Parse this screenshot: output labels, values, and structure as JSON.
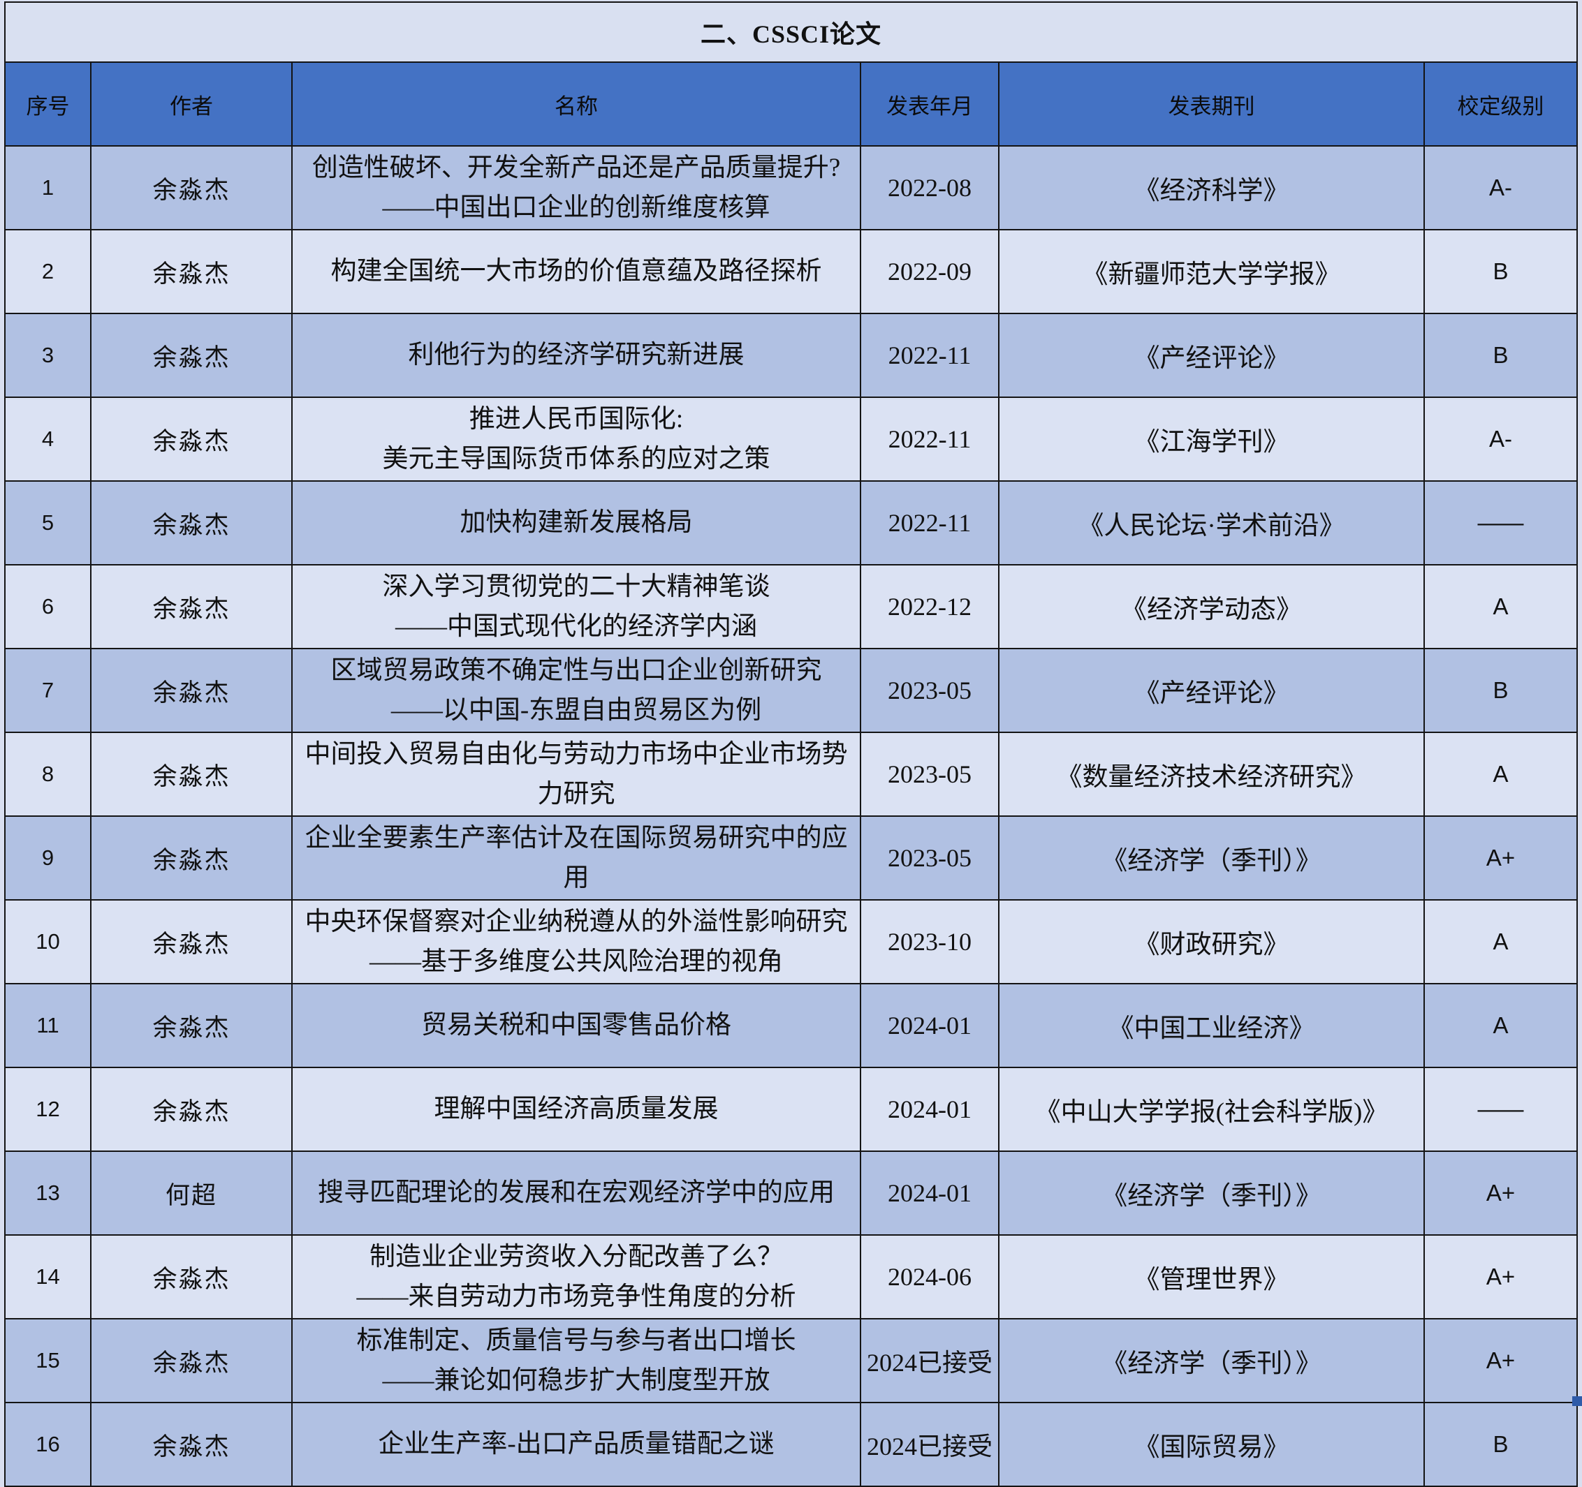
{
  "page": {
    "title": "二、CSSCI论文"
  },
  "colors": {
    "header_blue": "#4472c4",
    "row_dark": "#b1c1e3",
    "row_light": "#dbe2f3",
    "title_band": "#d9e0f1",
    "border": "#141414",
    "fill_handle": "#2e5ba9"
  },
  "table": {
    "headers": [
      "序号",
      "作者",
      "名称",
      "发表年月",
      "发表期刊",
      "校定级别"
    ],
    "rows": [
      {
        "seq": "1",
        "author": "余淼杰",
        "title_lines": [
          "创造性破坏、开发全新产品还是产品质量提升?",
          "——中国出口企业的创新维度核算"
        ],
        "date": "2022-08",
        "journal": "《经济科学》",
        "level": "A-",
        "shade": "dark"
      },
      {
        "seq": "2",
        "author": "余淼杰",
        "title_lines": [
          "构建全国统一大市场的价值意蕴及路径探析"
        ],
        "date": "2022-09",
        "journal": "《新疆师范大学学报》",
        "level": "B",
        "shade": "light"
      },
      {
        "seq": "3",
        "author": "余淼杰",
        "title_lines": [
          "利他行为的经济学研究新进展"
        ],
        "date": "2022-11",
        "journal": "《产经评论》",
        "level": "B",
        "shade": "dark"
      },
      {
        "seq": "4",
        "author": "余淼杰",
        "title_lines": [
          "推进人民币国际化:",
          "美元主导国际货币体系的应对之策"
        ],
        "date": "2022-11",
        "journal": "《江海学刊》",
        "level": "A-",
        "shade": "light"
      },
      {
        "seq": "5",
        "author": "余淼杰",
        "title_lines": [
          "加快构建新发展格局"
        ],
        "date": "2022-11",
        "journal": "《人民论坛·学术前沿》",
        "level": "——",
        "shade": "dark"
      },
      {
        "seq": "6",
        "author": "余淼杰",
        "title_lines": [
          "深入学习贯彻党的二十大精神笔谈",
          "——中国式现代化的经济学内涵"
        ],
        "date": "2022-12",
        "journal": "《经济学动态》",
        "level": "A",
        "shade": "light"
      },
      {
        "seq": "7",
        "author": "余淼杰",
        "title_lines": [
          "区域贸易政策不确定性与出口企业创新研究",
          "——以中国-东盟自由贸易区为例"
        ],
        "date": "2023-05",
        "journal": "《产经评论》",
        "level": "B",
        "shade": "dark"
      },
      {
        "seq": "8",
        "author": "余淼杰",
        "title_lines": [
          "中间投入贸易自由化与劳动力市场中企业市场势力研究"
        ],
        "date": "2023-05",
        "journal": "《数量经济技术经济研究》",
        "level": "A",
        "shade": "light"
      },
      {
        "seq": "9",
        "author": "余淼杰",
        "title_lines": [
          "企业全要素生产率估计及在国际贸易研究中的应用"
        ],
        "date": "2023-05",
        "journal": "《经济学（季刊）》",
        "level": "A+",
        "shade": "dark"
      },
      {
        "seq": "10",
        "author": "余淼杰",
        "title_lines": [
          "中央环保督察对企业纳税遵从的外溢性影响研究",
          "——基于多维度公共风险治理的视角"
        ],
        "date": "2023-10",
        "journal": "《财政研究》",
        "level": "A",
        "shade": "light"
      },
      {
        "seq": "11",
        "author": "余淼杰",
        "title_lines": [
          "贸易关税和中国零售品价格"
        ],
        "date": "2024-01",
        "journal": "《中国工业经济》",
        "level": "A",
        "shade": "dark"
      },
      {
        "seq": "12",
        "author": "余淼杰",
        "title_lines": [
          "理解中国经济高质量发展"
        ],
        "date": "2024-01",
        "journal": "《中山大学学报(社会科学版)》",
        "level": "——",
        "shade": "light"
      },
      {
        "seq": "13",
        "author": "何超",
        "title_lines": [
          "搜寻匹配理论的发展和在宏观经济学中的应用"
        ],
        "date": "2024-01",
        "journal": "《经济学（季刊）》",
        "level": "A+",
        "shade": "dark"
      },
      {
        "seq": "14",
        "author": "余淼杰",
        "title_lines": [
          "制造业企业劳资收入分配改善了么？",
          "——来自劳动力市场竞争性角度的分析"
        ],
        "date": "2024-06",
        "journal": "《管理世界》",
        "level": "A+",
        "shade": "light"
      },
      {
        "seq": "15",
        "author": "余淼杰",
        "title_lines": [
          "标准制定、质量信号与参与者出口增长",
          "——兼论如何稳步扩大制度型开放"
        ],
        "date": "2024已接受",
        "journal": "《经济学（季刊）》",
        "level": "A+",
        "shade": "dark"
      },
      {
        "seq": "16",
        "author": "余淼杰",
        "title_lines": [
          "企业生产率-出口产品质量错配之谜"
        ],
        "date": "2024已接受",
        "journal": "《国际贸易》",
        "level": "B",
        "shade": "dark"
      }
    ]
  }
}
